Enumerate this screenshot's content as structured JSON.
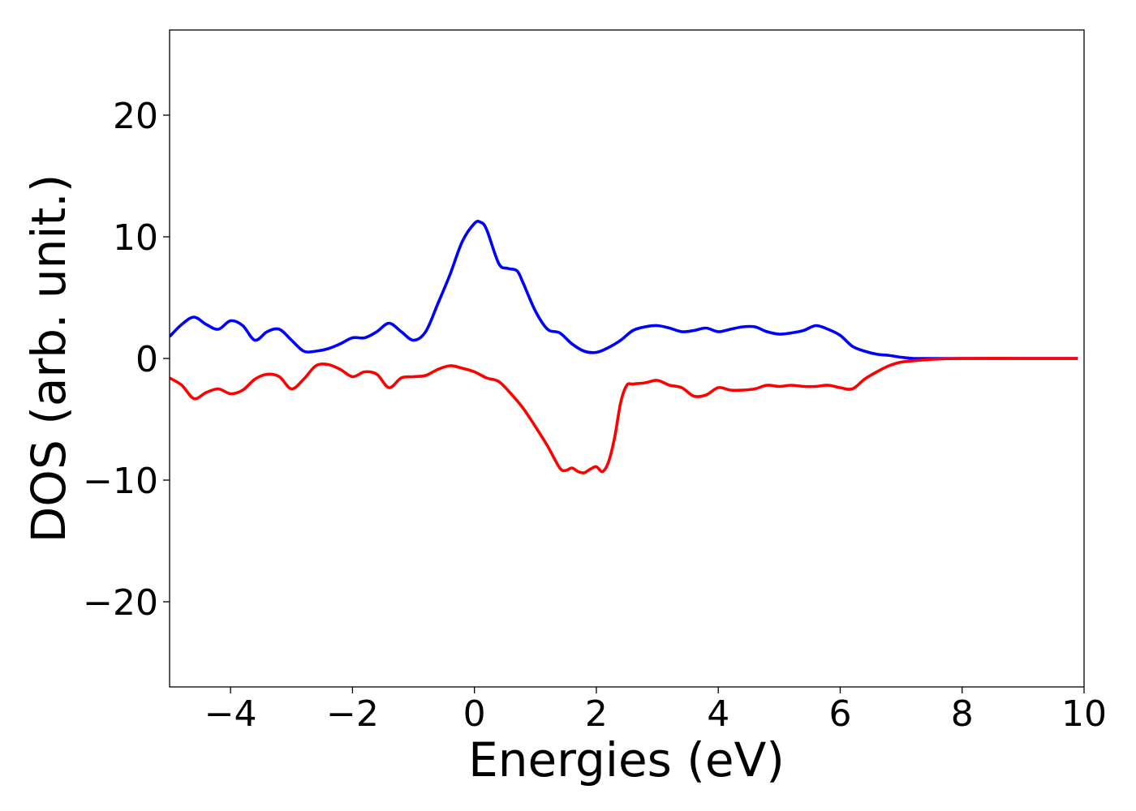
{
  "chart_data": {
    "type": "line",
    "xlabel": "Energies (eV)",
    "ylabel": "DOS (arb. unit.)",
    "xlim": [
      -5,
      10
    ],
    "ylim": [
      -27,
      27
    ],
    "x_ticks": [
      -4,
      -2,
      0,
      2,
      4,
      6,
      8,
      10
    ],
    "x_tick_labels": [
      "−4",
      "−2",
      "0",
      "2",
      "4",
      "6",
      "8",
      "10"
    ],
    "y_ticks": [
      -20,
      -10,
      0,
      10,
      20
    ],
    "y_tick_labels": [
      "−20",
      "−10",
      "0",
      "10",
      "20"
    ],
    "grid": false,
    "legend": "none",
    "series": [
      {
        "color": "#0000ff",
        "x": [
          -5.0,
          -4.8,
          -4.6,
          -4.4,
          -4.2,
          -4.0,
          -3.8,
          -3.6,
          -3.4,
          -3.2,
          -3.0,
          -2.8,
          -2.6,
          -2.4,
          -2.2,
          -2.0,
          -1.8,
          -1.6,
          -1.4,
          -1.2,
          -1.0,
          -0.8,
          -0.6,
          -0.4,
          -0.2,
          0.0,
          0.1,
          0.2,
          0.4,
          0.55,
          0.7,
          0.8,
          1.0,
          1.2,
          1.4,
          1.6,
          1.8,
          2.0,
          2.2,
          2.4,
          2.6,
          2.8,
          3.0,
          3.2,
          3.4,
          3.6,
          3.8,
          4.0,
          4.2,
          4.4,
          4.6,
          4.8,
          5.0,
          5.2,
          5.4,
          5.6,
          5.8,
          6.0,
          6.2,
          6.4,
          6.6,
          6.8,
          7.0,
          7.2,
          7.5,
          8.0,
          9.0,
          9.9
        ],
        "y": [
          1.8,
          2.8,
          3.4,
          2.8,
          2.4,
          3.1,
          2.7,
          1.5,
          2.2,
          2.4,
          1.5,
          0.6,
          0.6,
          0.8,
          1.2,
          1.7,
          1.7,
          2.2,
          2.9,
          2.2,
          1.5,
          2.2,
          4.5,
          6.9,
          9.6,
          11.1,
          11.2,
          10.6,
          7.8,
          7.4,
          7.2,
          6.2,
          3.9,
          2.4,
          2.1,
          1.2,
          0.6,
          0.5,
          0.9,
          1.5,
          2.3,
          2.6,
          2.7,
          2.5,
          2.2,
          2.3,
          2.5,
          2.2,
          2.4,
          2.6,
          2.6,
          2.2,
          2.0,
          2.1,
          2.3,
          2.7,
          2.4,
          1.9,
          1.0,
          0.6,
          0.35,
          0.25,
          0.1,
          0.0,
          0.0,
          0.0,
          0.0,
          0.0
        ]
      },
      {
        "color": "#ff0000",
        "x": [
          -5.0,
          -4.8,
          -4.6,
          -4.4,
          -4.2,
          -4.0,
          -3.8,
          -3.6,
          -3.4,
          -3.2,
          -3.0,
          -2.8,
          -2.6,
          -2.4,
          -2.2,
          -2.0,
          -1.8,
          -1.6,
          -1.4,
          -1.2,
          -1.0,
          -0.8,
          -0.6,
          -0.4,
          -0.2,
          0.0,
          0.2,
          0.4,
          0.6,
          0.8,
          1.0,
          1.2,
          1.4,
          1.5,
          1.6,
          1.7,
          1.8,
          1.9,
          2.0,
          2.1,
          2.2,
          2.3,
          2.4,
          2.5,
          2.6,
          2.8,
          3.0,
          3.2,
          3.4,
          3.6,
          3.8,
          4.0,
          4.2,
          4.4,
          4.6,
          4.8,
          5.0,
          5.2,
          5.4,
          5.6,
          5.8,
          6.0,
          6.2,
          6.4,
          6.6,
          6.8,
          7.0,
          7.3,
          7.6,
          8.0,
          9.0,
          9.9
        ],
        "y": [
          -1.6,
          -2.2,
          -3.3,
          -2.8,
          -2.5,
          -2.9,
          -2.6,
          -1.7,
          -1.3,
          -1.5,
          -2.5,
          -1.7,
          -0.6,
          -0.5,
          -0.9,
          -1.5,
          -1.1,
          -1.3,
          -2.4,
          -1.6,
          -1.5,
          -1.4,
          -0.9,
          -0.6,
          -0.8,
          -1.1,
          -1.6,
          -1.9,
          -2.9,
          -4.1,
          -5.6,
          -7.2,
          -9.0,
          -9.2,
          -9.0,
          -9.3,
          -9.4,
          -9.1,
          -8.9,
          -9.3,
          -8.5,
          -6.5,
          -3.6,
          -2.2,
          -2.1,
          -2.0,
          -1.8,
          -2.2,
          -2.4,
          -3.1,
          -3.0,
          -2.4,
          -2.6,
          -2.6,
          -2.5,
          -2.2,
          -2.3,
          -2.2,
          -2.3,
          -2.3,
          -2.2,
          -2.4,
          -2.5,
          -1.7,
          -1.1,
          -0.6,
          -0.3,
          -0.15,
          -0.05,
          0.0,
          0.0,
          0.0
        ]
      }
    ]
  }
}
